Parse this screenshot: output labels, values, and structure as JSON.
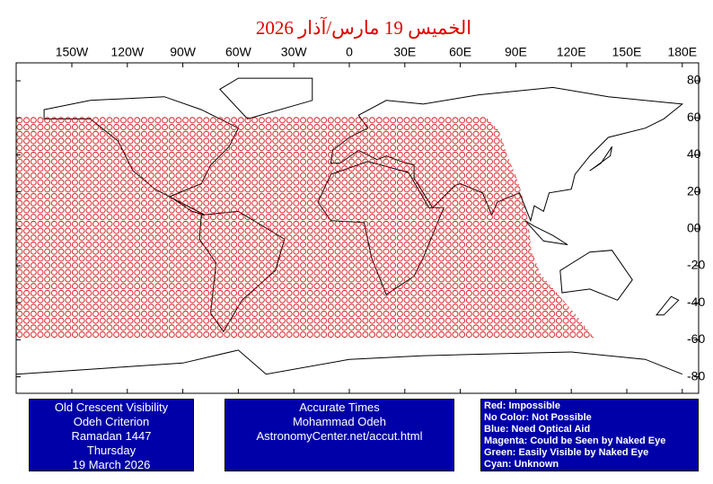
{
  "title": "الخميس 19 مارس/آذار 2026",
  "map": {
    "lon_labels": [
      "150W",
      "120W",
      "90W",
      "60W",
      "30W",
      "0",
      "30E",
      "60E",
      "90E",
      "120E",
      "150E",
      "180E"
    ],
    "lat_labels": [
      "80",
      "60",
      "40",
      "20",
      "00",
      "-20",
      "-40",
      "-60",
      "-80"
    ]
  },
  "info_box": [
    "Old Crescent Visibility",
    "Odeh Criterion",
    "Ramadan 1447",
    "Thursday",
    "19 March 2026"
  ],
  "credit_box": [
    "Accurate Times",
    "Mohammad Odeh",
    "AstronomyCenter.net/accut.html"
  ],
  "legend": [
    "Red: Impossible",
    "No Color: Not Possible",
    "Blue: Need Optical Aid",
    "Magenta: Could be Seen by Naked Eye",
    "Green: Easily Visible by Naked Eye",
    "Cyan: Unknown"
  ]
}
